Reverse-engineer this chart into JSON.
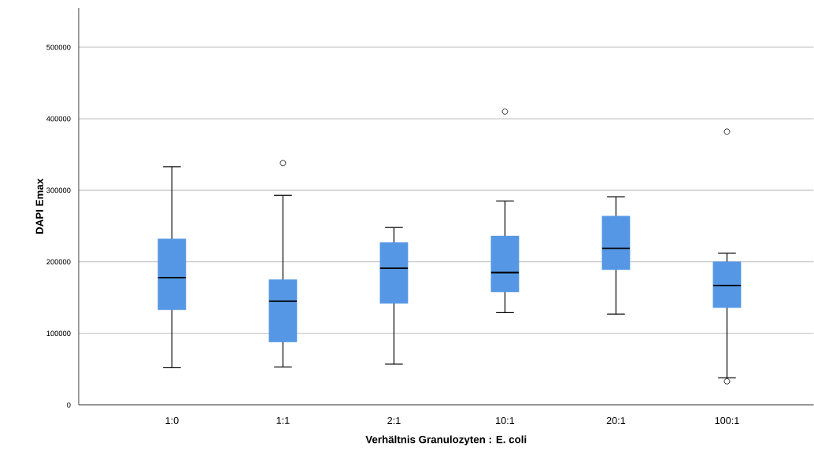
{
  "chart_data": {
    "type": "box",
    "xlabel": "Verhältnis Granulozyten : E. coli",
    "ylabel": "DAPI Emax",
    "categories": [
      "1:0",
      "1:1",
      "2:1",
      "10:1",
      "20:1",
      "100:1"
    ],
    "color": "#5597e4",
    "boxes": [
      {
        "low": 52000,
        "q1": 133000,
        "median": 178000,
        "q3": 232000,
        "high": 333000
      },
      {
        "low": 53000,
        "q1": 88000,
        "median": 145000,
        "q3": 175000,
        "high": 293000,
        "outliers": [
          338000
        ]
      },
      {
        "low": 57000,
        "q1": 142000,
        "median": 191000,
        "q3": 227000,
        "high": 248000
      },
      {
        "low": 129000,
        "q1": 158000,
        "median": 185000,
        "q3": 236000,
        "high": 285000,
        "outliers": [
          410000
        ]
      },
      {
        "low": 127000,
        "q1": 189000,
        "median": 219000,
        "q3": 264000,
        "high": 291000
      },
      {
        "low": 38000,
        "q1": 136000,
        "median": 167000,
        "q3": 200000,
        "high": 212000,
        "outliers": [
          382000,
          33000
        ]
      }
    ],
    "ylim": [
      0,
      555000
    ],
    "yticks": [
      0,
      100000,
      200000,
      300000,
      400000,
      500000
    ],
    "grid": "y"
  }
}
